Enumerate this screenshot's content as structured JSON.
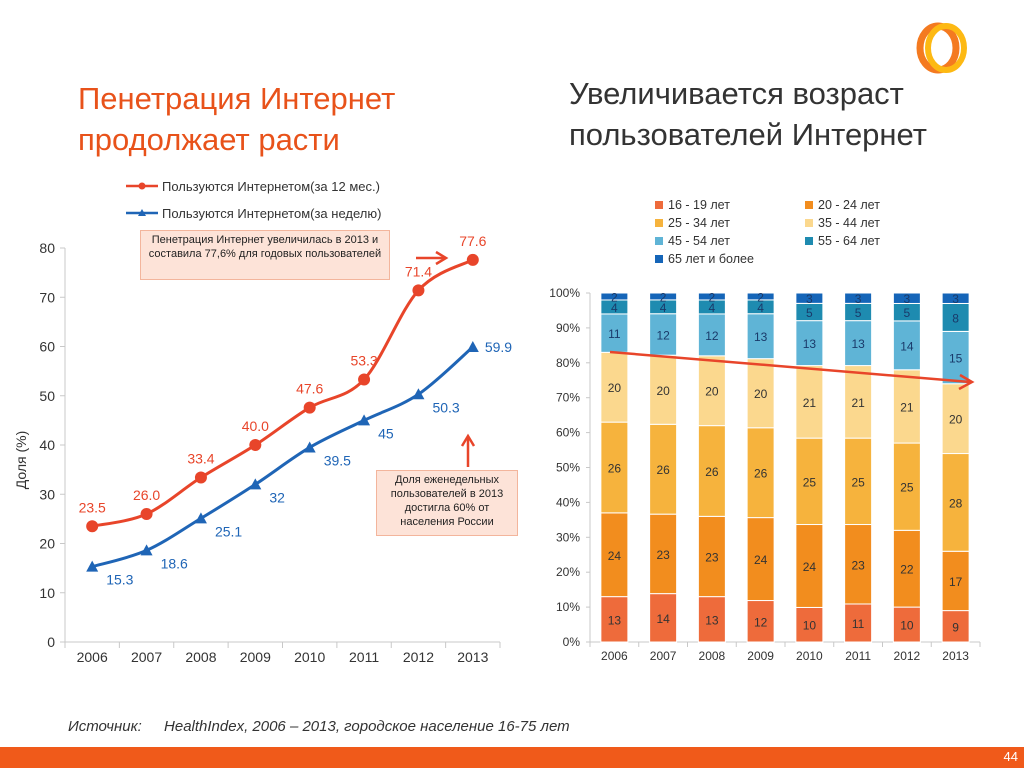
{
  "slide": {
    "title_left": "Пенетрация Интернет продолжает расти",
    "title_right": "Увеличивается возраст пользователей Интернет",
    "source_label": "Источник:",
    "source_text": "HealthIndex, 2006 – 2013, городское население 16-75 лет",
    "page_number": "44",
    "callout_1": "Пенетрация Интернет увеличилась в 2013  и составила 77,6% для годовых пользователей",
    "callout_2": "Доля еженедельных пользователей в 2013 достигла 60% от населения России"
  },
  "colors": {
    "accent": "#e8521a",
    "line_annual": "#e8452a",
    "line_weekly": "#1f65b6",
    "footer": "#f05a1a"
  },
  "chart_data": [
    {
      "type": "line",
      "categories": [
        "2006",
        "2007",
        "2008",
        "2009",
        "2010",
        "2011",
        "2012",
        "2013"
      ],
      "ylabel": "Доля (%)",
      "xlabel": "",
      "ylim": [
        0,
        80
      ],
      "yticks": [
        0,
        10,
        20,
        30,
        40,
        50,
        60,
        70,
        80
      ],
      "grid": false,
      "legend_position": "top",
      "series": [
        {
          "name": "Пользуются Интернетом(за 12 мес.)",
          "values": [
            23.5,
            26.0,
            33.4,
            40.0,
            47.6,
            53.3,
            71.4,
            77.6
          ],
          "labels": [
            "23.5",
            "26.0",
            "33.4",
            "40.0",
            "47.6",
            "53.3",
            "71.4",
            "77.6"
          ],
          "color": "#e8452a",
          "marker": "circle"
        },
        {
          "name": "Пользуются Интернетом(за неделю)",
          "values": [
            15.3,
            18.6,
            25.1,
            32,
            39.5,
            45,
            50.3,
            59.9
          ],
          "labels": [
            "15.3",
            "18.6",
            "25.1",
            "32",
            "39.5",
            "45",
            "50.3",
            "59.9"
          ],
          "color": "#1f65b6",
          "marker": "triangle"
        }
      ]
    },
    {
      "type": "bar",
      "stacked": true,
      "normalized": true,
      "categories": [
        "2006",
        "2007",
        "2008",
        "2009",
        "2010",
        "2011",
        "2012",
        "2013"
      ],
      "ylim": [
        0,
        100
      ],
      "yticks": [
        "0%",
        "10%",
        "20%",
        "30%",
        "40%",
        "50%",
        "60%",
        "70%",
        "80%",
        "90%",
        "100%"
      ],
      "legend_position": "top",
      "series": [
        {
          "name": "16 - 19 лет",
          "color": "#ee6b3b",
          "values": [
            13,
            14,
            13,
            12,
            10,
            11,
            10,
            9
          ]
        },
        {
          "name": "20 - 24 лет",
          "color": "#f28d1e",
          "values": [
            24,
            23,
            23,
            24,
            24,
            23,
            22,
            17
          ]
        },
        {
          "name": "25 - 34 лет",
          "color": "#f6b33d",
          "values": [
            26,
            26,
            26,
            26,
            25,
            25,
            25,
            28
          ]
        },
        {
          "name": "35 - 44 лет",
          "color": "#fbd88e",
          "values": [
            20,
            20,
            20,
            20,
            21,
            21,
            21,
            20
          ]
        },
        {
          "name": "45 - 54 лет",
          "color": "#5fb4d6",
          "values": [
            11,
            12,
            12,
            13,
            13,
            13,
            14,
            15
          ]
        },
        {
          "name": "55 - 64 лет",
          "color": "#1e8bb0",
          "values": [
            4,
            4,
            4,
            4,
            5,
            5,
            5,
            8
          ]
        },
        {
          "name": "65 лет и более",
          "color": "#1565b8",
          "values": [
            2,
            2,
            2,
            2,
            3,
            3,
            3,
            3
          ]
        }
      ],
      "trend_line": {
        "color": "#e8452a"
      }
    }
  ]
}
